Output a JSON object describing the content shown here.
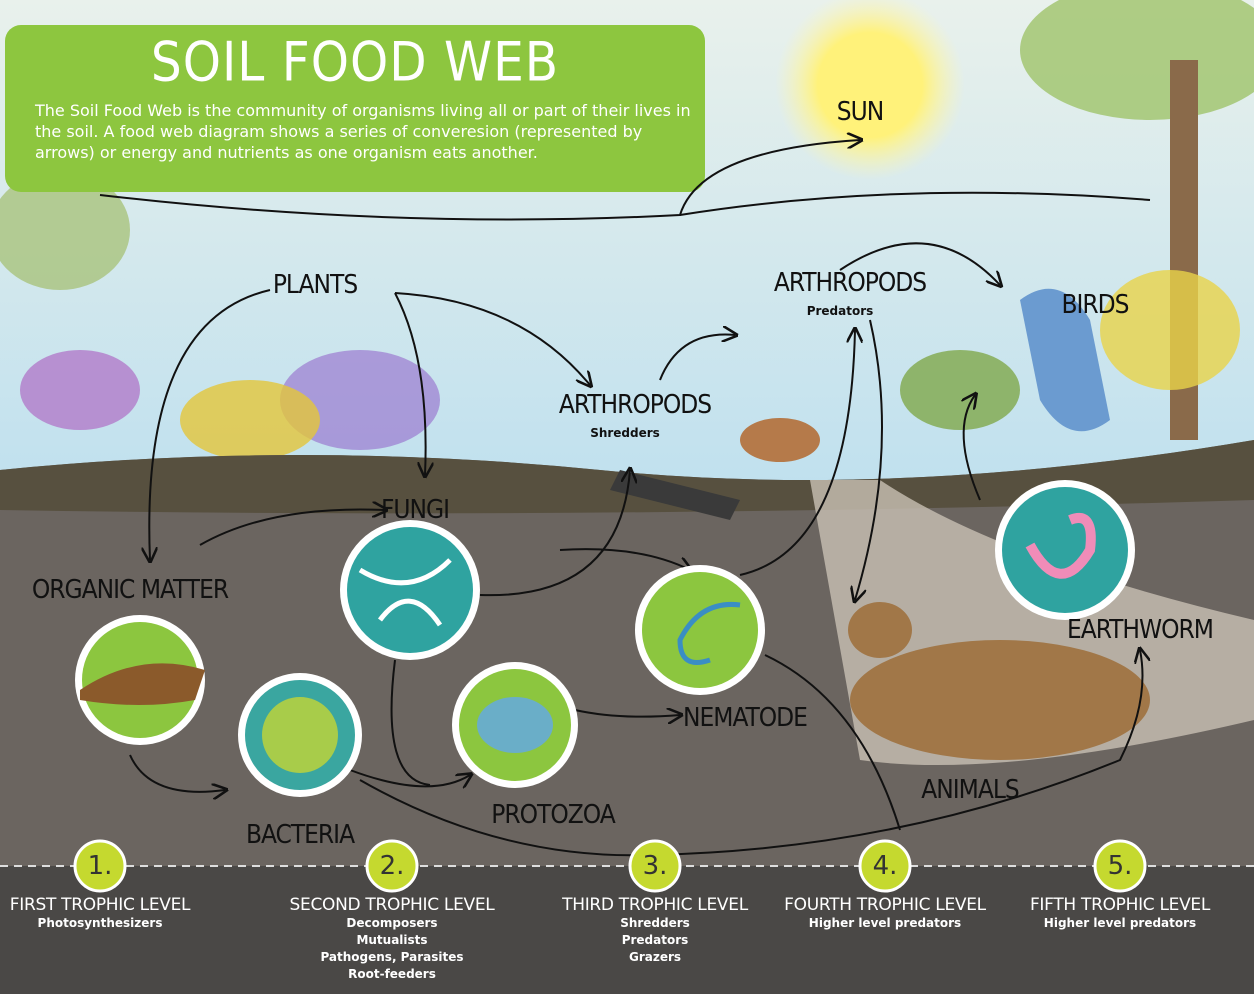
{
  "header": {
    "title": "SOIL FOOD WEB",
    "description": "The Soil Food Web is the community of organisms living all or part of their lives in the soil.  A food web diagram shows a series of converesion (represented by arrows) or energy and nutrients as one organism eats another."
  },
  "nodes": [
    {
      "label": "SUN"
    },
    {
      "label": "PLANTS"
    },
    {
      "label": "ARTHROPODS",
      "sublabel": "Shredders"
    },
    {
      "label": "ARTHROPODS",
      "sublabel": "Predators"
    },
    {
      "label": "BIRDS"
    },
    {
      "label": "FUNGI"
    },
    {
      "label": "ORGANIC MATTER"
    },
    {
      "label": "BACTERIA"
    },
    {
      "label": "PROTOZOA"
    },
    {
      "label": "NEMATODE"
    },
    {
      "label": "ANIMALS"
    },
    {
      "label": "EARTHWORM"
    }
  ],
  "trophic_levels": [
    {
      "number": "1.",
      "title": "FIRST TROPHIC LEVEL",
      "details": [
        "Photosynthesizers"
      ]
    },
    {
      "number": "2.",
      "title": "SECOND TROPHIC LEVEL",
      "details": [
        "Decomposers",
        "Mutualists",
        "Pathogens, Parasites",
        "Root-feeders"
      ]
    },
    {
      "number": "3.",
      "title": "THIRD TROPHIC LEVEL",
      "details": [
        "Shredders",
        "Predators",
        "Grazers"
      ]
    },
    {
      "number": "4.",
      "title": "FOURTH TROPHIC LEVEL",
      "details": [
        "Higher level predators"
      ]
    },
    {
      "number": "5.",
      "title": "FIFTH TROPHIC LEVEL",
      "details": [
        "Higher level predators"
      ]
    }
  ]
}
